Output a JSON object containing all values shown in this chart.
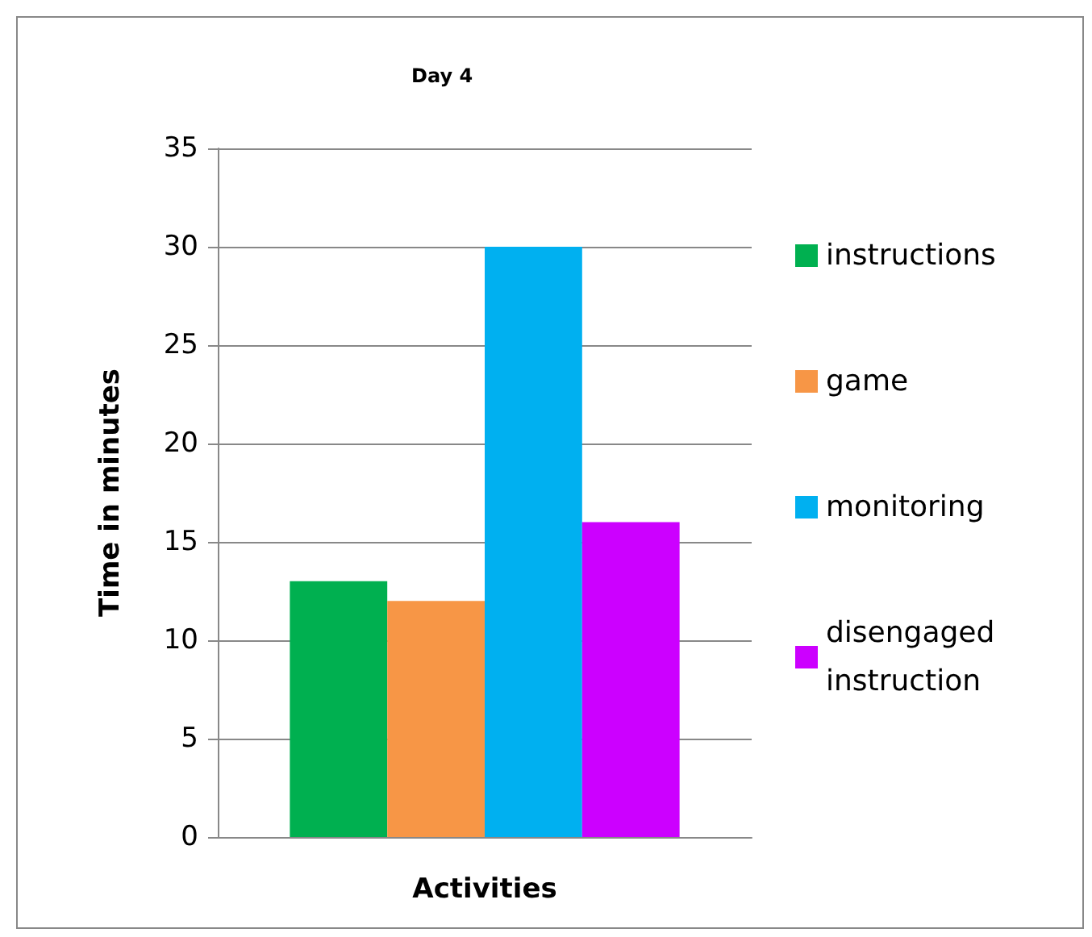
{
  "chart_data": {
    "type": "bar",
    "title": "Day 4",
    "xlabel": "Activities",
    "ylabel": "Time in minutes",
    "categories": [
      null
    ],
    "series": [
      {
        "name": "instructions",
        "color": "#00b050",
        "values": [
          13
        ]
      },
      {
        "name": "game",
        "color": "#f79646",
        "values": [
          12
        ]
      },
      {
        "name": "monitoring",
        "color": "#00b0f0",
        "values": [
          30
        ]
      },
      {
        "name": "disengaged instruction",
        "color": "#cc00ff",
        "values": [
          16
        ]
      }
    ],
    "ylim": [
      0,
      35
    ],
    "yticks": [
      0,
      5,
      10,
      15,
      20,
      25,
      30,
      35
    ],
    "grid": "y",
    "legend": "right"
  }
}
